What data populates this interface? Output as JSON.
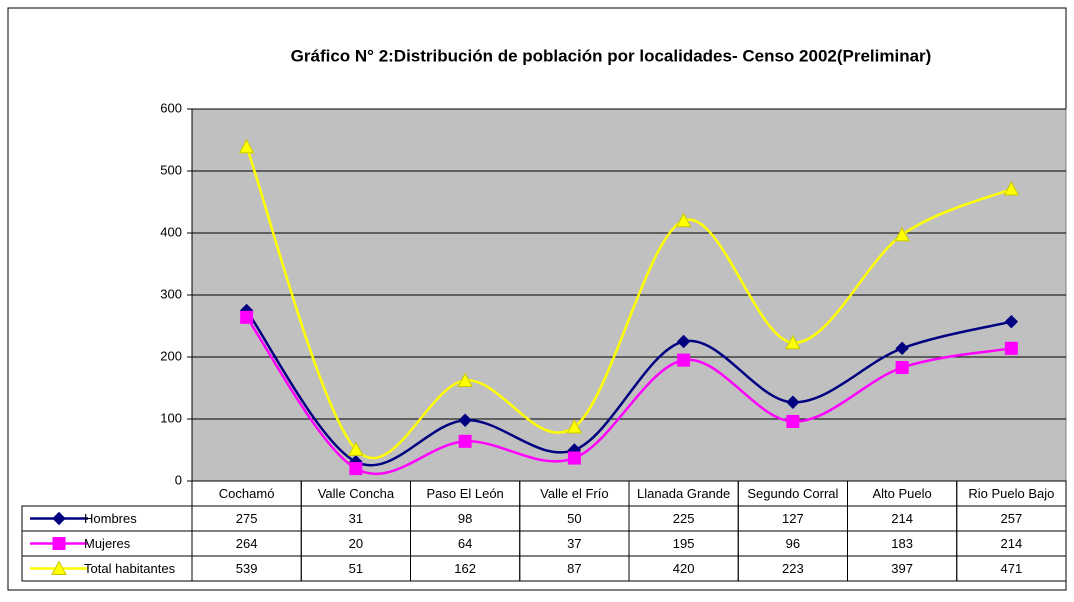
{
  "chart_data": {
    "type": "line",
    "title": "Gráfico N° 2:Distribución de población por localidades- Censo 2002(Preliminar)",
    "categories": [
      "Cochamó",
      "Valle Concha",
      "Paso El León",
      "Valle el Frío",
      "Llanada Grande",
      "Segundo Corral",
      "Alto Puelo",
      "Rio Puelo Bajo"
    ],
    "series": [
      {
        "name": "Hombres",
        "color": "#000080",
        "marker": "diamond",
        "values": [
          275,
          31,
          98,
          50,
          225,
          127,
          214,
          257
        ]
      },
      {
        "name": "Mujeres",
        "color": "#ff00ff",
        "marker": "square",
        "values": [
          264,
          20,
          64,
          37,
          195,
          96,
          183,
          214
        ]
      },
      {
        "name": "Total habitantes",
        "color": "#ffff00",
        "marker": "triangle",
        "values": [
          539,
          51,
          162,
          87,
          420,
          223,
          397,
          471
        ]
      }
    ],
    "ylim": [
      0,
      600
    ],
    "yticks": [
      0,
      100,
      200,
      300,
      400,
      500,
      600
    ],
    "grid": true,
    "smooth": true,
    "data_table": true
  }
}
